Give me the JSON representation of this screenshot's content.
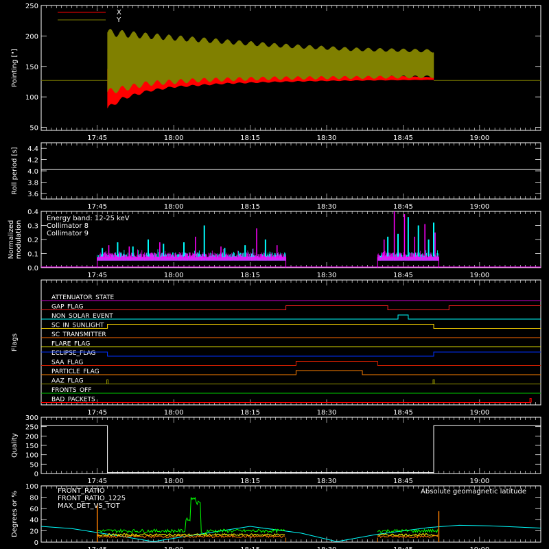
{
  "time_ticks": [
    "17:45",
    "18:00",
    "18:15",
    "18:30",
    "18:45",
    "19:00"
  ],
  "chart_data": [
    {
      "type": "line",
      "ylabel": "Pointing [\"]",
      "ylim": [
        45,
        250
      ],
      "yticks": [
        50,
        100,
        150,
        200,
        250
      ],
      "legend": [
        {
          "name": "X",
          "color": "#ff0000"
        },
        {
          "name": "Y",
          "color": "#808000"
        }
      ],
      "flat_level": 127,
      "active_start": "17:47",
      "active_end": "18:51",
      "series": [
        {
          "name": "X",
          "color": "#ff0000",
          "lower": [
            [
              "17:47",
              78
            ],
            [
              "17:50",
              95
            ],
            [
              "17:55",
              108
            ],
            [
              "18:00",
              115
            ],
            [
              "18:10",
              121
            ],
            [
              "18:20",
              124
            ],
            [
              "18:30",
              126
            ],
            [
              "18:40",
              127
            ],
            [
              "18:51",
              128
            ]
          ],
          "upper": [
            [
              "17:47",
              150
            ],
            [
              "18:51",
              132
            ]
          ]
        },
        {
          "name": "Y",
          "color": "#808000",
          "lower": [
            [
              "17:47",
              103
            ],
            [
              "17:55",
              118
            ],
            [
              "18:05",
              124
            ],
            [
              "18:20",
              128
            ],
            [
              "18:40",
              130
            ],
            [
              "18:51",
              131
            ]
          ],
          "upper": [
            [
              "17:47",
              212
            ],
            [
              "17:55",
              205
            ],
            [
              "18:05",
              198
            ],
            [
              "18:20",
              188
            ],
            [
              "18:35",
              181
            ],
            [
              "18:51",
              178
            ]
          ]
        }
      ]
    },
    {
      "type": "line",
      "ylabel": "Roll period [s]",
      "ylim": [
        3.5,
        4.5
      ],
      "yticks": [
        "3.6",
        "3.8",
        "4.0",
        "4.2",
        "4.4"
      ],
      "series": [
        {
          "name": "",
          "color": "#ffffff",
          "points": [
            [
              "17:34",
              4.03
            ],
            [
              "19:12",
              4.03
            ]
          ]
        }
      ]
    },
    {
      "type": "line",
      "ylabel": [
        "Normalized",
        "modulation"
      ],
      "ylim": [
        0,
        0.4
      ],
      "yticks": [
        "0.0",
        "0.1",
        "0.2",
        "0.3",
        "0.4"
      ],
      "legend": [
        {
          "name": "Energy band: 12-25 keV",
          "color": "#ffffff"
        },
        {
          "name": "Collimator 8",
          "color": "#00ffff"
        },
        {
          "name": "Collimator 9",
          "color": "#ff00ff"
        }
      ],
      "active_intervals": [
        [
          "17:45",
          "18:22"
        ],
        [
          "18:40",
          "18:52"
        ]
      ],
      "baseline": 0.09,
      "spikes_c8": [
        [
          "17:46",
          0.14
        ],
        [
          "17:49",
          0.18
        ],
        [
          "17:52",
          0.15
        ],
        [
          "17:55",
          0.2
        ],
        [
          "17:58",
          0.17
        ],
        [
          "18:02",
          0.18
        ],
        [
          "18:06",
          0.3
        ],
        [
          "18:10",
          0.14
        ],
        [
          "18:14",
          0.16
        ],
        [
          "18:18",
          0.2
        ],
        [
          "18:42",
          0.22
        ],
        [
          "18:44",
          0.24
        ],
        [
          "18:46",
          0.36
        ],
        [
          "18:48",
          0.3
        ],
        [
          "18:50",
          0.2
        ],
        [
          "18:51",
          0.32
        ]
      ],
      "spikes_c9": [
        [
          "17:47",
          0.16
        ],
        [
          "17:51",
          0.15
        ],
        [
          "17:57",
          0.18
        ],
        [
          "18:04",
          0.22
        ],
        [
          "18:09",
          0.15
        ],
        [
          "18:16",
          0.28
        ],
        [
          "18:20",
          0.16
        ],
        [
          "18:41",
          0.2
        ],
        [
          "18:43",
          0.4
        ],
        [
          "18:45",
          0.38
        ],
        [
          "18:47",
          0.22
        ],
        [
          "18:49",
          0.31
        ],
        [
          "18:51",
          0.25
        ]
      ]
    },
    {
      "type": "line",
      "ylabel": "Flags",
      "flags": [
        {
          "name": "ATTENUATOR_STATE",
          "color": "#cc00cc",
          "segments": [
            [
              "17:34",
              "19:12",
              0
            ]
          ]
        },
        {
          "name": "GAP_FLAG",
          "color": "#ff2020",
          "segments": [
            [
              "17:34",
              "18:22",
              0
            ],
            [
              "18:22",
              "18:42",
              1
            ],
            [
              "18:42",
              "18:54",
              0
            ],
            [
              "18:54",
              "19:12",
              1
            ]
          ]
        },
        {
          "name": "NON_SOLAR_EVENT",
          "color": "#00ffff",
          "segments": [
            [
              "17:34",
              "18:44",
              0
            ],
            [
              "18:44",
              "18:46",
              1
            ],
            [
              "18:46",
              "19:12",
              0
            ]
          ]
        },
        {
          "name": "SC_IN_SUNLIGHT",
          "color": "#ffd700",
          "segments": [
            [
              "17:34",
              "17:47",
              0
            ],
            [
              "17:47",
              "18:51",
              1
            ],
            [
              "18:51",
              "19:12",
              0
            ]
          ]
        },
        {
          "name": "SC_TRANSMITTER",
          "color": "#ff6a00",
          "segments": [
            [
              "17:34",
              "19:12",
              0
            ]
          ]
        },
        {
          "name": "FLARE_FLAG",
          "color": "#ffff00",
          "segments": [
            [
              "17:34",
              "19:12",
              0
            ]
          ]
        },
        {
          "name": "ECLIPSE_FLAG",
          "color": "#0030ff",
          "segments": [
            [
              "17:34",
              "17:47",
              1
            ],
            [
              "17:47",
              "18:51",
              0
            ],
            [
              "18:51",
              "19:12",
              1
            ]
          ]
        },
        {
          "name": "SAA_FLAG",
          "color": "#dd2000",
          "segments": [
            [
              "17:34",
              "18:24",
              0
            ],
            [
              "18:24",
              "18:40",
              1
            ],
            [
              "18:40",
              "19:12",
              0
            ]
          ]
        },
        {
          "name": "PARTICLE_FLAG",
          "color": "#ff7f00",
          "segments": [
            [
              "17:34",
              "18:24",
              0
            ],
            [
              "18:24",
              "18:37",
              1
            ],
            [
              "18:37",
              "19:12",
              0
            ]
          ]
        },
        {
          "name": "AAZ_FLAG",
          "color": "#999900",
          "segments": [
            [
              "17:34",
              "19:12",
              0
            ]
          ],
          "pulses": [
            "17:47",
            "18:51"
          ]
        },
        {
          "name": "FRONTS_OFF",
          "color": "#00cc00",
          "segments": [
            [
              "17:34",
              "19:12",
              0
            ]
          ]
        },
        {
          "name": "BAD_PACKETS",
          "color": "#ff0000",
          "segments": [
            [
              "17:34",
              "19:10",
              0
            ]
          ],
          "pulses": [
            "19:10"
          ]
        }
      ]
    },
    {
      "type": "line",
      "ylabel": "Quality",
      "ylim": [
        0,
        300
      ],
      "yticks": [
        0,
        50,
        100,
        150,
        200,
        250,
        300
      ],
      "series": [
        {
          "name": "",
          "color": "#ffffff",
          "points": [
            [
              "17:34",
              255
            ],
            [
              "17:47",
              255
            ],
            [
              "17:47",
              5
            ],
            [
              "18:51",
              5
            ],
            [
              "18:51",
              255
            ],
            [
              "19:12",
              255
            ]
          ]
        }
      ]
    },
    {
      "type": "line",
      "ylabel": "Degrees or %",
      "ylim": [
        0,
        100
      ],
      "yticks": [
        0,
        20,
        40,
        60,
        80,
        100
      ],
      "legend": [
        {
          "name": "FRONT_RATIO",
          "color": "#ffff00"
        },
        {
          "name": "FRONT_RATIO_1225",
          "color": "#00ff00"
        },
        {
          "name": "MAX_DET_VS_TOT",
          "color": "#ff8000"
        }
      ],
      "legend_right": {
        "name": "Absolute geomagnetic latitude",
        "color": "#00ffff"
      },
      "latitude": [
        [
          "17:34",
          28
        ],
        [
          "17:40",
          24
        ],
        [
          "17:50",
          10
        ],
        [
          "17:56",
          1
        ],
        [
          "18:05",
          14
        ],
        [
          "18:15",
          28
        ],
        [
          "18:25",
          16
        ],
        [
          "18:32",
          1
        ],
        [
          "18:40",
          14
        ],
        [
          "18:50",
          26
        ],
        [
          "18:56",
          30
        ],
        [
          "19:02",
          29
        ],
        [
          "19:12",
          25
        ]
      ],
      "active_intervals": [
        [
          "17:45",
          "18:22"
        ],
        [
          "18:40",
          "18:52"
        ]
      ],
      "front_1225_level": 20,
      "front_ratio_level": 13,
      "max_det_level": 10,
      "burst": [
        [
          "18:03",
          40
        ],
        [
          "18:04",
          78
        ],
        [
          "18:05",
          70
        ],
        [
          "18:06",
          15
        ]
      ],
      "edge_spikes": [
        [
          "17:45",
          68
        ],
        [
          "18:52",
          55
        ]
      ]
    }
  ]
}
